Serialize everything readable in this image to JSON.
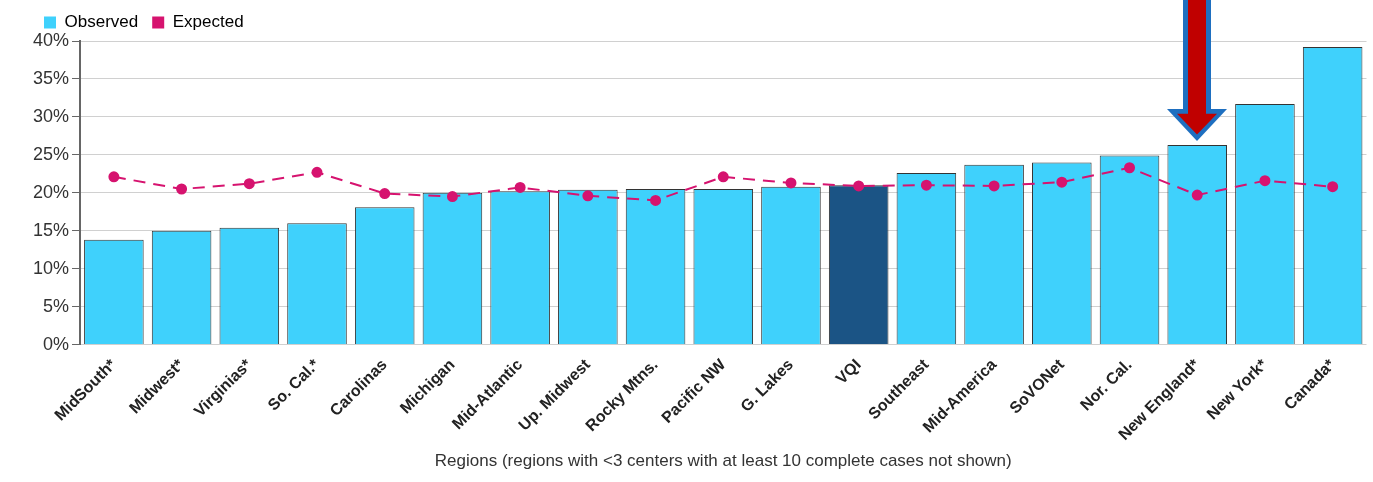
{
  "chart_data": {
    "type": "bar",
    "xlabel": "Regions (regions with <3 centers with at least 10 complete cases not shown)",
    "categories": [
      "MidSouth*",
      "Midwest*",
      "Virginias*",
      "So. Cal.*",
      "Carolinas",
      "Michigan",
      "Mid-Atlantic",
      "Up. Midwest",
      "Rocky Mtns.",
      "Pacific NW",
      "G. Lakes",
      "VQI",
      "Southeast",
      "Mid-America",
      "SoVONet",
      "Nor. Cal.",
      "New England*",
      "New York*",
      "Canada*"
    ],
    "series": [
      {
        "name": "Observed",
        "color": "#3fd1fc",
        "colors": [
          "#3fd1fc",
          "#3fd1fc",
          "#3fd1fc",
          "#3fd1fc",
          "#3fd1fc",
          "#3fd1fc",
          "#3fd1fc",
          "#3fd1fc",
          "#3fd1fc",
          "#3fd1fc",
          "#3fd1fc",
          "#1b5485",
          "#3fd1fc",
          "#3fd1fc",
          "#3fd1fc",
          "#3fd1fc",
          "#3fd1fc",
          "#3fd1fc",
          "#3fd1fc"
        ],
        "values": [
          13.8,
          15.0,
          15.4,
          16.0,
          18.1,
          20.0,
          20.2,
          20.4,
          20.5,
          20.5,
          20.8,
          21.0,
          22.6,
          23.7,
          24.0,
          24.9,
          26.3,
          31.7,
          39.2
        ]
      },
      {
        "name": "Expected",
        "type": "line",
        "color": "#d6136f",
        "line_style": "dashed",
        "marker": "circle",
        "values": [
          22.1,
          20.5,
          21.2,
          22.7,
          19.9,
          19.5,
          20.7,
          19.6,
          19.0,
          22.1,
          21.3,
          20.9,
          21.0,
          20.9,
          21.4,
          23.3,
          19.7,
          21.6,
          20.8
        ]
      }
    ],
    "ylim": [
      0,
      40
    ],
    "yticks": [
      {
        "value": 0,
        "label": "0%"
      },
      {
        "value": 5,
        "label": "5%"
      },
      {
        "value": 10,
        "label": "10%"
      },
      {
        "value": 15,
        "label": "15%"
      },
      {
        "value": 20,
        "label": "20%"
      },
      {
        "value": 25,
        "label": "25%"
      },
      {
        "value": 30,
        "label": "30%"
      },
      {
        "value": 35,
        "label": "35%"
      },
      {
        "value": 40,
        "label": "40%"
      }
    ],
    "grid": "y",
    "legend": "top left"
  }
}
